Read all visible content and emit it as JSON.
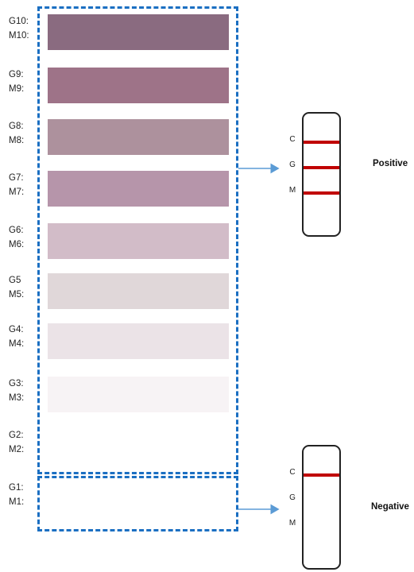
{
  "grades": [
    {
      "g": "G10:",
      "m": "M10:",
      "color": "#8a6b80"
    },
    {
      "g": "G9:",
      "m": "M9:",
      "color": "#9e7388"
    },
    {
      "g": "G8:",
      "m": "M8:",
      "color": "#ad919d"
    },
    {
      "g": "G7:",
      "m": "M7:",
      "color": "#b695aa"
    },
    {
      "g": "G6:",
      "m": "M6:",
      "color": "#d2bcc8"
    },
    {
      "g": "G5",
      "m": "M5:",
      "color": "#e0d7d9"
    },
    {
      "g": "G4:",
      "m": "M4:",
      "color": "#ebe3e7"
    },
    {
      "g": "G3:",
      "m": "M3:",
      "color": "#f7f3f5"
    },
    {
      "g": "G2:",
      "m": "M2:",
      "color": "#ffffff"
    },
    {
      "g": "G1:",
      "m": "M1:",
      "color": "#ffffff"
    }
  ],
  "positive": {
    "label": "Positive",
    "letters": [
      "C",
      "G",
      "M"
    ],
    "lines": [
      "C",
      "G",
      "M"
    ]
  },
  "negative": {
    "label": "Negative",
    "letters": [
      "C",
      "G",
      "M"
    ],
    "lines": [
      "C"
    ]
  },
  "colors": {
    "dash_border": "#1b6fc2",
    "arrow": "#5b9bd5",
    "test_line": "#c00000"
  }
}
